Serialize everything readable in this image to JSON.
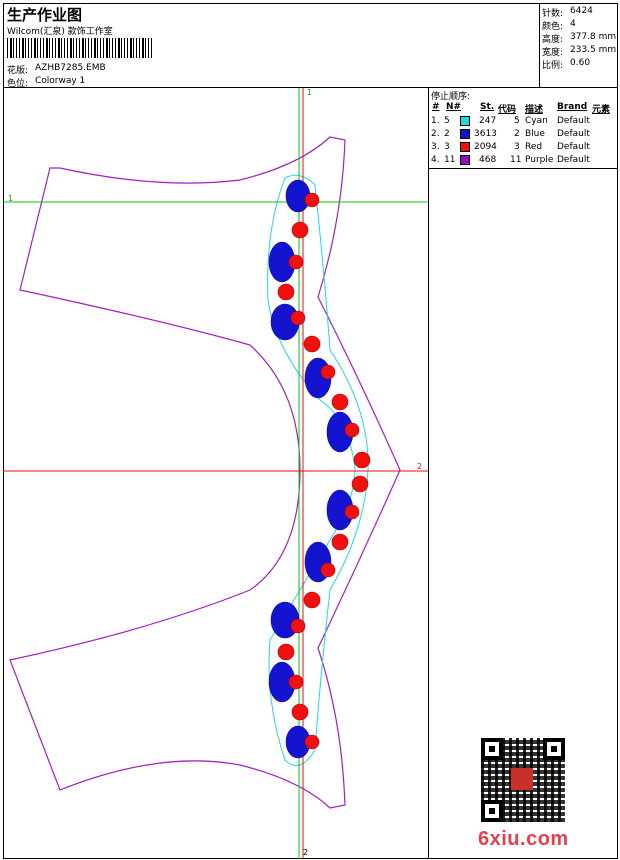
{
  "header": {
    "title": "生产作业图",
    "company": "Wilcom(汇泉) 款饰工作室",
    "design_label": "花版:",
    "design_file": "AZHB7285.EMB",
    "colorway_label": "色位:",
    "colorway": "Colorway 1"
  },
  "stats": [
    {
      "label": "针数:",
      "value": "6424"
    },
    {
      "label": "颜色:",
      "value": "4"
    },
    {
      "label": "高度:",
      "value": "377.8 mm"
    },
    {
      "label": "宽度:",
      "value": "233.5 mm"
    },
    {
      "label": "比例:",
      "value": "0.60"
    }
  ],
  "stop_sequence": {
    "title": "停止顺序:",
    "headers": [
      "#",
      "N#",
      "St.",
      "代码",
      "描述",
      "Brand",
      "元素"
    ],
    "rows": [
      {
        "num": "1.",
        "n": "5",
        "st": "247",
        "code": "5",
        "desc": "Cyan",
        "brand": "Default",
        "color": "#20d8e0"
      },
      {
        "num": "2.",
        "n": "2",
        "st": "3613",
        "code": "2",
        "desc": "Blue",
        "brand": "Default",
        "color": "#1414d0"
      },
      {
        "num": "3.",
        "n": "3",
        "st": "2094",
        "code": "3",
        "desc": "Red",
        "brand": "Default",
        "color": "#f01010"
      },
      {
        "num": "4.",
        "n": "11",
        "st": "468",
        "code": "11",
        "desc": "Purple",
        "brand": "Default",
        "color": "#9010c0"
      }
    ]
  },
  "guides": {
    "v_top_label": "1",
    "v_bottom_label": "2",
    "h_top_label": "1",
    "h_mid_label": "2"
  },
  "watermark": "6xiu.com",
  "colors": {
    "outline": "#a020c0",
    "guide_green": "#10c010",
    "guide_red": "#e01010",
    "cyan": "#20d8e0",
    "blue": "#1414d0",
    "red": "#f01010"
  }
}
